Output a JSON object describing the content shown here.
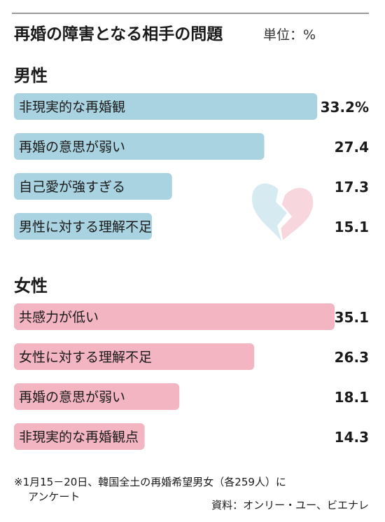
{
  "title": "再婚の障害となる相手の問題",
  "unit": "単位：%",
  "chart_data": [
    {
      "type": "bar",
      "group_label": "男性",
      "color": "#a9d3e0",
      "categories": [
        "非現実的な再婚観",
        "再婚の意思が弱い",
        "自己愛が強すぎる",
        "男性に対する理解不足"
      ],
      "values": [
        33.2,
        27.4,
        17.3,
        15.1
      ],
      "value_labels": [
        "33.2%",
        "27.4",
        "17.3",
        "15.1"
      ],
      "xlim": [
        0,
        35.1
      ]
    },
    {
      "type": "bar",
      "group_label": "女性",
      "color": "#f3b5c1",
      "categories": [
        "共感力が低い",
        "女性に対する理解不足",
        "再婚の意思が弱い",
        "非現実的な再婚観点"
      ],
      "values": [
        35.1,
        26.3,
        18.1,
        14.3
      ],
      "value_labels": [
        "35.1",
        "26.3",
        "18.1",
        "14.3"
      ],
      "xlim": [
        0,
        35.1
      ]
    }
  ],
  "heart_icon": "broken-heart-icon",
  "footnote": [
    "※1月15－20日、韓国全土の再婚希望男女（各259人）に",
    "アンケート"
  ],
  "source": "資料：オンリー・ユー、ビエナレ"
}
